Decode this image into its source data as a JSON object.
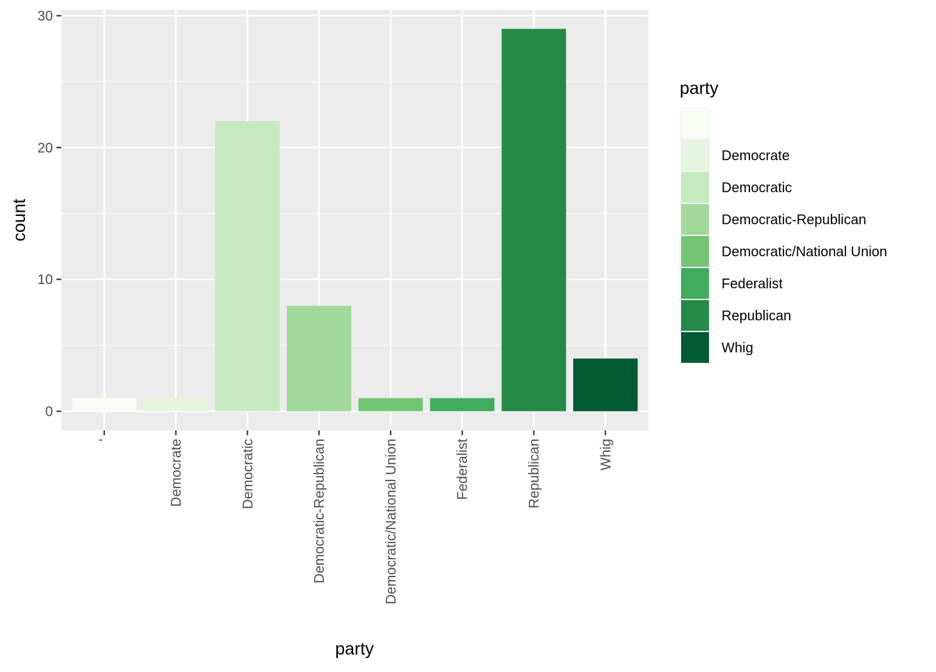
{
  "chart_data": {
    "type": "bar",
    "categories": [
      "",
      "Democrate",
      "Democratic",
      "Democratic-Republican",
      "Democratic/National Union",
      "Federalist",
      "Republican",
      "Whig"
    ],
    "tick_labels": [
      "'",
      "Democrate",
      "Democratic",
      "Democratic-Republican",
      "Democratic/National Union",
      "Federalist",
      "Republican",
      "Whig"
    ],
    "values": [
      1,
      1,
      22,
      8,
      1,
      1,
      29,
      4
    ],
    "colors": [
      "#f7fcf5",
      "#e5f5e0",
      "#c7e9c0",
      "#a1d99b",
      "#74c476",
      "#41ab5d",
      "#238b45",
      "#005a32"
    ],
    "xlabel": "party",
    "ylabel": "count",
    "ylim": [
      0,
      30
    ],
    "yticks": [
      0,
      10,
      20,
      30
    ],
    "grid": true,
    "legend": {
      "title": "party",
      "position": "right",
      "entries": [
        "",
        "Democrate",
        "Democratic",
        "Democratic-Republican",
        "Democratic/National Union",
        "Federalist",
        "Republican",
        "Whig"
      ]
    }
  }
}
